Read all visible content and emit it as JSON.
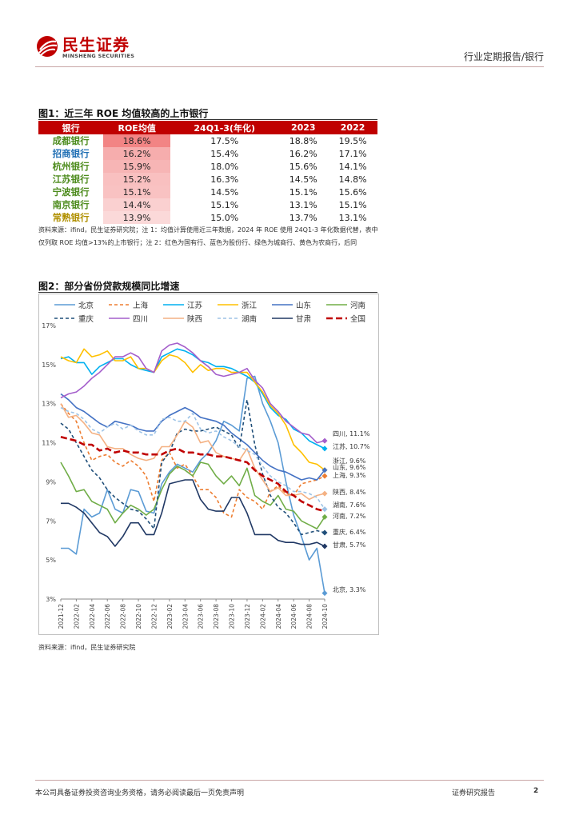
{
  "header": {
    "brand_cn": "民生证券",
    "brand_en": "MINSHENG SECURITIES",
    "report_type": "行业定期报告/银行"
  },
  "figure1": {
    "title": "图1：近三年 ROE 均值较高的上市银行",
    "columns": [
      "银行",
      "ROE均值",
      "24Q1-3(年化)",
      "2023",
      "2022"
    ],
    "rows": [
      {
        "bank": "成都银行",
        "roe_avg": "18.6%",
        "q": "17.5%",
        "y2023": "18.8%",
        "y2022": "19.5%",
        "heat": 1.0
      },
      {
        "bank": "招商银行",
        "roe_avg": "16.2%",
        "q": "15.4%",
        "y2023": "16.2%",
        "y2022": "17.1%",
        "heat": 0.6
      },
      {
        "bank": "杭州银行",
        "roe_avg": "15.9%",
        "q": "18.0%",
        "y2023": "15.6%",
        "y2022": "14.1%",
        "heat": 0.52
      },
      {
        "bank": "江苏银行",
        "roe_avg": "15.2%",
        "q": "16.3%",
        "y2023": "14.5%",
        "y2022": "14.8%",
        "heat": 0.4
      },
      {
        "bank": "宁波银行",
        "roe_avg": "15.1%",
        "q": "14.5%",
        "y2023": "15.1%",
        "y2022": "15.6%",
        "heat": 0.38
      },
      {
        "bank": "南京银行",
        "roe_avg": "14.4%",
        "q": "15.1%",
        "y2023": "13.1%",
        "y2022": "15.1%",
        "heat": 0.25
      },
      {
        "bank": "常熟银行",
        "roe_avg": "13.9%",
        "q": "15.0%",
        "y2023": "13.7%",
        "y2022": "13.1%",
        "heat": 0.15
      }
    ],
    "bank_colors": [
      "#4e8c1e",
      "#1f6fb4",
      "#4e8c1e",
      "#4e8c1e",
      "#4e8c1e",
      "#4e8c1e",
      "#b09000"
    ],
    "note": "资料来源：ifind，民生证券研究院；注 1：均值计算使用近三年数据，2024 年 ROE 使用 24Q1-3 年化数据代替，表中仅列取 ROE 均值>13%的上市银行；注 2：红色为国有行、蓝色为股份行、绿色为城商行、黄色为农商行，后同"
  },
  "figure2": {
    "title": "图2：部分省份贷款规模同比增速",
    "source": "资料来源：ifind，民生证券研究院"
  },
  "chart_data": {
    "type": "line",
    "title": "图2：部分省份贷款规模同比增速",
    "xlabel": "",
    "ylabel": "",
    "ylim": [
      3,
      17
    ],
    "y_ticks": [
      "3%",
      "5%",
      "7%",
      "9%",
      "11%",
      "13%",
      "15%",
      "17%"
    ],
    "x_ticks": [
      "2021-12",
      "2022-02",
      "2022-04",
      "2022-06",
      "2022-08",
      "2022-10",
      "2022-12",
      "2023-02",
      "2023-04",
      "2023-06",
      "2023-08",
      "2023-10",
      "2023-12",
      "2024-02",
      "2024-04",
      "2024-06",
      "2024-08",
      "2024-10"
    ],
    "x": [
      "2021-12",
      "2022-01",
      "2022-02",
      "2022-03",
      "2022-04",
      "2022-05",
      "2022-06",
      "2022-07",
      "2022-08",
      "2022-09",
      "2022-10",
      "2022-11",
      "2022-12",
      "2023-01",
      "2023-02",
      "2023-03",
      "2023-04",
      "2023-05",
      "2023-06",
      "2023-07",
      "2023-08",
      "2023-09",
      "2023-10",
      "2023-11",
      "2023-12",
      "2024-01",
      "2024-02",
      "2024-03",
      "2024-04",
      "2024-05",
      "2024-06",
      "2024-07",
      "2024-08",
      "2024-09",
      "2024-10"
    ],
    "legend": "top",
    "series": [
      {
        "name": "北京",
        "color": "#5b9bd5",
        "dash": "",
        "end_label": "北京, 3.3%",
        "values": [
          5.6,
          5.6,
          5.3,
          7.6,
          7.2,
          7.4,
          8.6,
          7.6,
          7.4,
          8.6,
          8.5,
          7.5,
          7.4,
          8.9,
          9.5,
          9.9,
          9.7,
          9.5,
          10.1,
          10.5,
          11.1,
          12.1,
          11.9,
          11.6,
          14.3,
          14.4,
          13.0,
          12.1,
          11.0,
          9.0,
          7.3,
          6.2,
          5.0,
          5.6,
          3.3
        ]
      },
      {
        "name": "上海",
        "color": "#ed7d31",
        "dash": "4,3",
        "end_label": "上海, 9.3%",
        "values": [
          13.0,
          12.5,
          12.1,
          11.0,
          10.1,
          10.3,
          10.4,
          10.0,
          9.8,
          10.1,
          9.8,
          9.3,
          8.0,
          10.1,
          10.5,
          9.7,
          9.9,
          9.3,
          8.6,
          8.6,
          8.2,
          7.4,
          7.2,
          8.6,
          8.2,
          8.0,
          7.6,
          8.5,
          8.8,
          8.4,
          8.3,
          8.9,
          9.0,
          9.1,
          9.3
        ]
      },
      {
        "name": "江苏",
        "color": "#00b0f0",
        "dash": "",
        "end_label": "江苏, 10.7%",
        "values": [
          15.3,
          15.4,
          15.1,
          15.1,
          14.5,
          14.9,
          15.1,
          15.3,
          15.3,
          15.0,
          14.8,
          14.7,
          14.6,
          15.4,
          15.6,
          15.8,
          15.7,
          15.5,
          15.2,
          15.1,
          14.9,
          14.9,
          14.8,
          14.6,
          14.4,
          14.1,
          13.5,
          12.8,
          12.4,
          12.2,
          11.7,
          11.5,
          11.1,
          10.9,
          10.7
        ]
      },
      {
        "name": "浙江",
        "color": "#ffc000",
        "dash": "",
        "end_label": "浙江, 9.6%",
        "values": [
          15.4,
          15.2,
          15.1,
          15.8,
          15.4,
          15.5,
          15.7,
          15.2,
          15.2,
          15.4,
          14.8,
          14.8,
          14.6,
          15.2,
          15.5,
          15.4,
          15.1,
          14.6,
          15.0,
          14.7,
          14.8,
          14.8,
          14.6,
          14.6,
          14.6,
          14.1,
          13.6,
          12.9,
          12.5,
          11.9,
          10.9,
          10.5,
          10.0,
          9.9,
          9.6
        ]
      },
      {
        "name": "山东",
        "color": "#4472c4",
        "dash": "",
        "end_label": "山东, 9.6%",
        "values": [
          13.5,
          13.2,
          12.8,
          12.6,
          12.3,
          12.0,
          11.8,
          12.1,
          12.0,
          11.9,
          11.7,
          11.6,
          11.6,
          12.1,
          12.4,
          12.6,
          12.8,
          12.6,
          12.3,
          12.2,
          12.1,
          11.9,
          11.5,
          11.2,
          10.9,
          10.5,
          10.1,
          9.8,
          9.6,
          9.5,
          9.3,
          9.1,
          9.2,
          9.1,
          9.6
        ]
      },
      {
        "name": "河南",
        "color": "#70ad47",
        "dash": "",
        "end_label": "河南, 7.2%",
        "values": [
          10.0,
          9.3,
          8.5,
          8.6,
          8.0,
          7.8,
          7.6,
          6.9,
          7.4,
          7.8,
          7.6,
          7.3,
          7.6,
          8.6,
          9.4,
          9.8,
          9.6,
          9.3,
          10.0,
          9.9,
          9.3,
          8.9,
          9.3,
          8.8,
          9.7,
          8.3,
          8.0,
          7.8,
          8.3,
          7.6,
          7.5,
          7.0,
          6.8,
          6.6,
          7.2
        ]
      },
      {
        "name": "重庆",
        "color": "#1f4e79",
        "dash": "4,3",
        "end_label": "重庆, 6.4%",
        "values": [
          12.0,
          11.7,
          11.0,
          10.3,
          9.6,
          9.2,
          8.6,
          8.2,
          7.9,
          7.6,
          7.5,
          7.1,
          6.6,
          10.0,
          10.5,
          11.5,
          11.7,
          11.6,
          11.6,
          11.7,
          11.8,
          11.6,
          11.4,
          10.7,
          13.2,
          10.9,
          9.4,
          8.3,
          7.7,
          7.4,
          6.9,
          6.3,
          6.4,
          6.5,
          6.4
        ]
      },
      {
        "name": "四川",
        "color": "#a45ecb",
        "dash": "",
        "end_label": "四川, 11.1%",
        "values": [
          13.3,
          13.5,
          13.6,
          13.9,
          14.3,
          14.6,
          15.0,
          15.4,
          15.4,
          15.6,
          15.4,
          14.8,
          14.6,
          15.7,
          16.0,
          16.1,
          15.9,
          15.6,
          15.2,
          14.9,
          14.5,
          14.4,
          14.5,
          14.6,
          14.8,
          14.2,
          13.8,
          13.0,
          12.6,
          12.1,
          11.8,
          11.5,
          11.4,
          11.0,
          11.1
        ]
      },
      {
        "name": "陕西",
        "color": "#f4b183",
        "dash": "",
        "end_label": "陕西, 8.4%",
        "values": [
          13.0,
          12.3,
          12.4,
          12.0,
          11.5,
          11.4,
          10.8,
          10.7,
          10.7,
          10.4,
          10.2,
          10.1,
          10.2,
          10.8,
          10.8,
          11.4,
          12.1,
          11.8,
          11.0,
          11.1,
          10.5,
          10.3,
          10.2,
          10.1,
          10.7,
          9.7,
          9.1,
          8.5,
          8.7,
          8.3,
          8.3,
          8.4,
          8.1,
          8.3,
          8.4
        ]
      },
      {
        "name": "湖南",
        "color": "#9dc3e6",
        "dash": "4,3",
        "end_label": "湖南, 7.6%",
        "values": [
          12.8,
          12.6,
          12.5,
          12.2,
          11.7,
          11.5,
          11.8,
          12.0,
          11.7,
          11.9,
          11.6,
          11.4,
          11.4,
          12.2,
          12.3,
          12.1,
          12.1,
          12.5,
          11.7,
          11.5,
          11.6,
          11.3,
          11.1,
          10.8,
          10.6,
          10.4,
          9.8,
          9.3,
          9.0,
          8.8,
          8.5,
          8.5,
          8.4,
          8.2,
          7.6
        ]
      },
      {
        "name": "甘肃",
        "color": "#203864",
        "dash": "",
        "end_label": "甘肃, 5.7%",
        "values": [
          7.9,
          7.9,
          7.7,
          7.4,
          6.9,
          6.4,
          6.2,
          5.7,
          6.2,
          6.9,
          6.9,
          6.3,
          6.3,
          7.4,
          8.9,
          9.0,
          9.1,
          9.1,
          8.1,
          7.6,
          7.5,
          7.5,
          8.2,
          8.2,
          7.4,
          6.3,
          6.3,
          6.3,
          6.0,
          5.9,
          5.9,
          5.8,
          5.8,
          5.9,
          5.7
        ]
      },
      {
        "name": "全国",
        "color": "#c00000",
        "dash": "8,4",
        "width": 2.6,
        "end_label": "",
        "values": [
          11.3,
          11.2,
          11.1,
          10.9,
          10.9,
          10.6,
          10.7,
          10.5,
          10.6,
          10.5,
          10.5,
          10.4,
          10.4,
          10.4,
          10.6,
          10.7,
          10.5,
          10.5,
          10.4,
          10.4,
          10.3,
          10.3,
          10.2,
          10.1,
          10.0,
          9.6,
          9.3,
          9.1,
          8.9,
          8.5,
          8.3,
          8.0,
          7.8,
          7.6,
          7.5
        ]
      }
    ]
  },
  "footer": {
    "disclaimer": "本公司具备证券投资咨询业务资格，请务必阅读最后一页免责声明",
    "report_label": "证券研究报告",
    "page": "2"
  }
}
